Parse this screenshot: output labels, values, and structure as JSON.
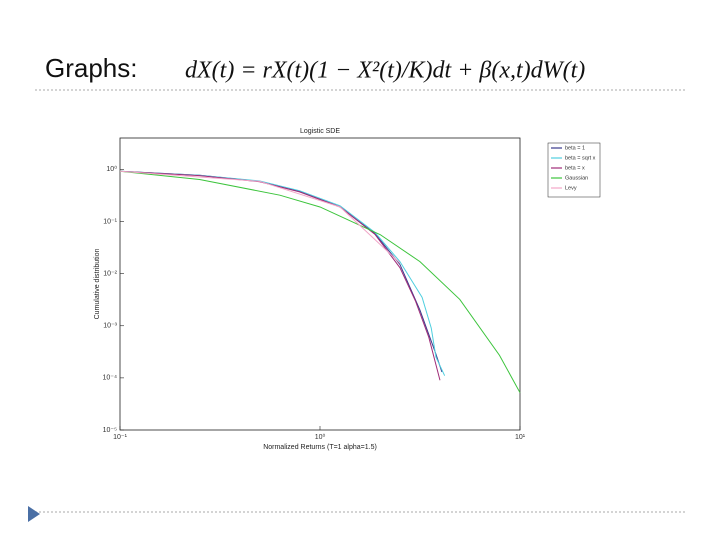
{
  "slide": {
    "title": "Graphs:",
    "equation": "dX(t) = rX(t)(1 − X²(t)/K)dt + β(x,t)dW(t)"
  },
  "chart_data": {
    "type": "line",
    "title": "Logistic SDE",
    "x_label": "Normalized Returns (T=1 alpha=1.5)",
    "y_label": "Cumulative distribution",
    "xscale": "log",
    "yscale": "log",
    "legend": "top-right",
    "xlim": [
      0.1,
      10
    ],
    "ylim": [
      1e-05,
      4
    ],
    "xticks": [
      {
        "value": 0.1,
        "label": "10⁻¹"
      },
      {
        "value": 1,
        "label": "10⁰"
      },
      {
        "value": 10,
        "label": "10¹"
      }
    ],
    "yticks": [
      {
        "value": 1e-05,
        "label": "10⁻⁵"
      },
      {
        "value": 0.0001,
        "label": "10⁻⁴"
      },
      {
        "value": 0.001,
        "label": "10⁻³"
      },
      {
        "value": 0.01,
        "label": "10⁻²"
      },
      {
        "value": 0.1,
        "label": "10⁻¹"
      },
      {
        "value": 1,
        "label": "10⁰"
      }
    ],
    "series": [
      {
        "name": "beta = 1",
        "color": "#3a3a8c",
        "x": [
          0.1,
          0.25,
          0.5,
          0.79,
          1.26,
          1.88,
          2.51,
          3.16,
          3.76,
          4.07
        ],
        "values": [
          0.92,
          0.77,
          0.59,
          0.38,
          0.19,
          0.059,
          0.015,
          0.002,
          0.00032,
          0.00013
        ]
      },
      {
        "name": "beta = sqrt x",
        "color": "#4fcfdf",
        "x": [
          0.1,
          0.25,
          0.5,
          0.79,
          1.26,
          1.88,
          2.51,
          3.24,
          3.6,
          3.8,
          4.2
        ],
        "values": [
          0.92,
          0.77,
          0.6,
          0.39,
          0.2,
          0.062,
          0.017,
          0.0035,
          0.0009,
          0.00025,
          0.00011
        ]
      },
      {
        "name": "beta = x",
        "color": "#a02c78",
        "x": [
          0.1,
          0.25,
          0.5,
          0.79,
          1.26,
          1.88,
          2.51,
          3.0,
          3.5,
          3.98
        ],
        "values": [
          0.92,
          0.76,
          0.58,
          0.37,
          0.19,
          0.057,
          0.013,
          0.003,
          0.0006,
          9e-05
        ]
      },
      {
        "name": "Gaussian",
        "color": "#3cc43c",
        "x": [
          0.1,
          0.25,
          0.63,
          1,
          2,
          3.16,
          5,
          7.9,
          10
        ],
        "values": [
          0.92,
          0.64,
          0.32,
          0.19,
          0.056,
          0.017,
          0.0032,
          0.00027,
          5.2e-05
        ]
      },
      {
        "name": "Levy",
        "color": "#f2a6c8",
        "x": [
          0.1,
          0.5,
          1.26,
          2.51
        ],
        "values": [
          0.92,
          0.59,
          0.19,
          0.016
        ]
      }
    ]
  }
}
